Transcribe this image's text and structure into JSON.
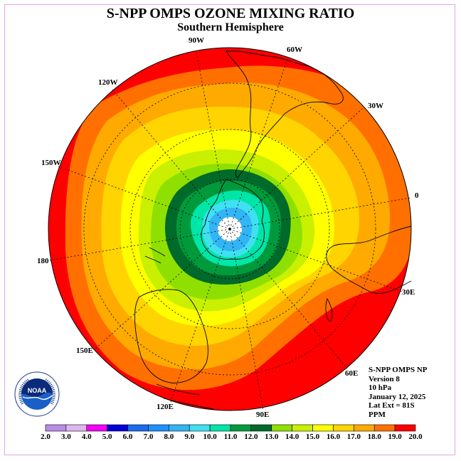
{
  "header": {
    "title": "S-NPP OMPS OZONE MIXING RATIO",
    "subtitle": "Southern Hemisphere"
  },
  "map": {
    "projection": "south-polar-stereographic",
    "longitude_labels": [
      "90W",
      "60W",
      "30W",
      "0",
      "30E",
      "60E",
      "90E",
      "120E",
      "150E",
      "180",
      "150W",
      "120W"
    ],
    "colors": {
      "2.0": "#b98de6",
      "3.0": "#e0b6f0",
      "4.0": "#f500f5",
      "5.0": "#0000d8",
      "6.0": "#1a6cf0",
      "7.0": "#1e90ff",
      "8.0": "#32b4f5",
      "9.0": "#40e0f0",
      "10.0": "#00e6a8",
      "11.0": "#009a3c",
      "12.0": "#006a2a",
      "13.0": "#8fe000",
      "14.0": "#c8f000",
      "15.0": "#ffff00",
      "16.0": "#ffd400",
      "17.0": "#ffaa00",
      "18.0": "#ff7000",
      "19.0": "#ff0000",
      "20.0": "#8a5a3c"
    }
  },
  "info": {
    "product": "S-NPP OMPS NP",
    "version": "Version 8",
    "level": "10 hPa",
    "date": "January 12, 2025",
    "lat_ext": "Lat Ext = 81S",
    "units": "PPM"
  },
  "legend": {
    "labels": [
      "2.0",
      "3.0",
      "4.0",
      "5.0",
      "6.0",
      "7.0",
      "8.0",
      "9.0",
      "10.0",
      "11.0",
      "12.0",
      "13.0",
      "14.0",
      "15.0",
      "16.0",
      "17.0",
      "18.0",
      "19.0",
      "20.0"
    ],
    "colors": [
      "#b98de6",
      "#e0b6f0",
      "#f500f5",
      "#0000d8",
      "#1a6cf0",
      "#1e90ff",
      "#32b4f5",
      "#40e0f0",
      "#00e6a8",
      "#009a3c",
      "#006a2a",
      "#8fe000",
      "#c8f000",
      "#ffff00",
      "#ffd400",
      "#ffaa00",
      "#ff7000",
      "#ff0000",
      "#8a5a3c"
    ]
  },
  "logo": {
    "text": "NOAA",
    "ring_text": "NATIONAL OCEANIC AND ATMOSPHERIC ADMINISTRATION · U.S. DEPARTMENT OF COMMERCE"
  }
}
